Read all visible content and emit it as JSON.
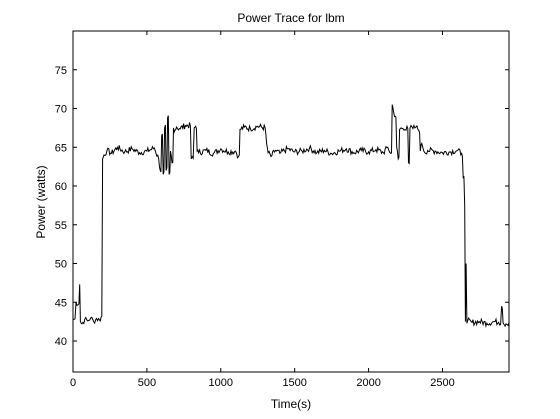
{
  "chart_data": {
    "type": "line",
    "title": "Power Trace for lbm",
    "xlabel": "Time(s)",
    "ylabel": "Power (watts)",
    "xlim": [
      0,
      2950
    ],
    "ylim": [
      36,
      80
    ],
    "xticks": [
      0,
      500,
      1000,
      1500,
      2000,
      2500
    ],
    "yticks": [
      40,
      45,
      50,
      55,
      60,
      65,
      70,
      75
    ],
    "grid": false,
    "series": [
      {
        "color": "#000000",
        "x": [
          0,
          20,
          40,
          45,
          50,
          60,
          80,
          100,
          120,
          140,
          160,
          180,
          195,
          200,
          210,
          230,
          260,
          300,
          350,
          400,
          450,
          500,
          550,
          580,
          590,
          600,
          610,
          620,
          630,
          640,
          650,
          660,
          670,
          680,
          690,
          700,
          720,
          760,
          800,
          820,
          830,
          840,
          850,
          900,
          950,
          1000,
          1050,
          1100,
          1120,
          1130,
          1160,
          1200,
          1250,
          1300,
          1310,
          1320,
          1340,
          1370,
          1400,
          1450,
          1500,
          1550,
          1600,
          1650,
          1700,
          1750,
          1800,
          1850,
          1900,
          1950,
          2000,
          2050,
          2100,
          2130,
          2150,
          2160,
          2170,
          2180,
          2190,
          2200,
          2210,
          2220,
          2240,
          2260,
          2270,
          2280,
          2300,
          2320,
          2340,
          2350,
          2360,
          2380,
          2400,
          2450,
          2500,
          2550,
          2600,
          2630,
          2640,
          2650,
          2655,
          2660,
          2665,
          2670,
          2700,
          2750,
          2800,
          2850,
          2880,
          2900,
          2910,
          2930,
          2950
        ],
        "y": [
          42.8,
          45.0,
          44.8,
          47.3,
          42.5,
          42.2,
          42.8,
          42.6,
          43.0,
          42.5,
          42.9,
          42.7,
          43.2,
          63.5,
          64.0,
          64.6,
          64.2,
          65.0,
          64.4,
          64.8,
          64.3,
          64.5,
          64.9,
          63.5,
          62.0,
          66.5,
          61.5,
          67.5,
          62.0,
          68.8,
          61.5,
          64.5,
          63.0,
          67.5,
          67.2,
          67.6,
          67.4,
          67.8,
          63.5,
          67.5,
          67.7,
          64.5,
          64.3,
          64.6,
          64.2,
          64.8,
          64.4,
          64.5,
          63.8,
          67.3,
          67.6,
          67.4,
          67.7,
          67.5,
          65.5,
          64.3,
          63.8,
          64.6,
          64.2,
          64.8,
          64.4,
          64.5,
          64.9,
          64.3,
          64.6,
          64.2,
          64.5,
          64.8,
          64.3,
          64.6,
          64.4,
          64.7,
          64.3,
          65.0,
          64.2,
          70.5,
          69.5,
          69.0,
          65.0,
          63.5,
          67.3,
          67.5,
          67.2,
          67.7,
          63.0,
          67.5,
          67.4,
          67.6,
          67.2,
          64.5,
          65.5,
          64.3,
          64.6,
          64.5,
          64.3,
          64.4,
          64.6,
          64.2,
          61.0,
          57.5,
          42.5,
          50.0,
          42.3,
          42.6,
          42.4,
          42.5,
          42.3,
          42.5,
          42.4,
          44.5,
          42.3,
          42.2,
          42.4
        ]
      }
    ]
  }
}
